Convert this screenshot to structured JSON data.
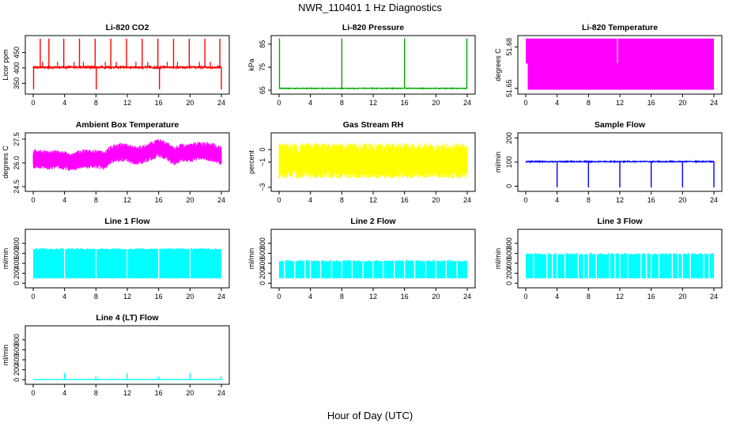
{
  "page": {
    "title": "NWR_110401  1 Hz Diagnostics",
    "xlabel": "Hour of Day (UTC)"
  },
  "chart_data": [
    {
      "type": "line",
      "title": "Li-820 CO2",
      "ylabel": "Licor ppm",
      "color": "#ff0000",
      "xlim": [
        0,
        24
      ],
      "x_ticks": [
        0,
        4,
        8,
        12,
        16,
        20,
        24
      ],
      "ylim": [
        320,
        500
      ],
      "y_ticks": [
        350,
        400,
        450
      ],
      "y_tick_labels": [
        "350",
        "400",
        "450"
      ],
      "baseline": 402,
      "noise": 3,
      "spikes_up_hours": [
        0.9,
        2.0,
        3.9,
        5.9,
        7.9,
        9.9,
        11.9,
        13.9,
        15.9,
        17.9,
        19.9,
        21.9,
        23.8
      ],
      "spike_up_value": 495,
      "spikes_down_hours": [
        0.05,
        8.05,
        16.1,
        24.0
      ],
      "spike_down_value": 330,
      "note": ""
    },
    {
      "type": "line",
      "title": "Li-820 Pressure",
      "ylabel": "kPa",
      "color": "#00aa00",
      "xlim": [
        0,
        24
      ],
      "x_ticks": [
        0,
        4,
        8,
        12,
        16,
        20,
        24
      ],
      "ylim": [
        64,
        88
      ],
      "y_ticks": [
        65,
        75,
        85
      ],
      "y_tick_labels": [
        "65",
        "75",
        "85"
      ],
      "baseline": 65.8,
      "noise": 0.15,
      "spikes_up_hours": [
        0.05,
        8.0,
        16.0,
        23.95
      ],
      "spike_up_value": 87.5,
      "spikes_down_hours": [],
      "spike_down_value": 65
    },
    {
      "type": "area",
      "title": "Li-820 Temperature",
      "ylabel": "degrees C",
      "color": "#ff00ff",
      "xlim": [
        0,
        24
      ],
      "x_ticks": [
        0,
        4,
        8,
        12,
        16,
        20,
        24
      ],
      "ylim": [
        51.647,
        51.687
      ],
      "y_ticks": [
        51.65,
        51.68
      ],
      "y_tick_labels": [
        "51.65",
        "51.68"
      ],
      "band_low": 51.649,
      "band_high": 51.686,
      "band_low_start": 51.668,
      "band_start_hour": 0.25,
      "gap_hour": 11.7
    },
    {
      "type": "line",
      "title": "Ambient Box Temperature",
      "ylabel": "degrees C",
      "color": "#ff00ff",
      "xlim": [
        0,
        24
      ],
      "x_ticks": [
        0,
        4,
        8,
        12,
        16,
        20,
        24
      ],
      "ylim": [
        24.3,
        27.8
      ],
      "y_ticks": [
        24.5,
        26.0,
        27.5
      ],
      "y_tick_labels": [
        "24.5",
        "26.0",
        "27.5"
      ],
      "center_by_hour": [
        26.3,
        26.3,
        26.2,
        26.3,
        26.2,
        26.1,
        26.3,
        26.3,
        26.3,
        26.2,
        26.6,
        26.7,
        26.7,
        26.5,
        26.6,
        26.8,
        27.0,
        26.8,
        26.5,
        26.7,
        26.7,
        26.8,
        26.8,
        26.7,
        26.5
      ],
      "spread": 0.55
    },
    {
      "type": "line",
      "title": "Gas Stream RH",
      "ylabel": "percent",
      "color": "#ffff00",
      "xlim": [
        0,
        24
      ],
      "x_ticks": [
        0,
        4,
        8,
        12,
        16,
        20,
        24
      ],
      "ylim": [
        -3.2,
        1.2
      ],
      "y_ticks": [
        -3,
        -1,
        0
      ],
      "y_tick_labels": [
        "−3",
        "−1",
        "0"
      ],
      "center": -0.95,
      "spread": 1.05
    },
    {
      "type": "line",
      "title": "Sample Flow",
      "ylabel": "ml/min",
      "color": "#0000ff",
      "xlim": [
        0,
        24
      ],
      "x_ticks": [
        0,
        4,
        8,
        12,
        16,
        20,
        24
      ],
      "ylim": [
        -15,
        215
      ],
      "y_ticks": [
        0,
        100,
        200
      ],
      "y_tick_labels": [
        "0",
        "100",
        "200"
      ],
      "baseline": 102,
      "noise": 2,
      "spikes_down_hours": [
        4.0,
        8.0,
        12.0,
        16.0,
        20.0,
        24.0
      ],
      "spike_down_value": -5
    },
    {
      "type": "area",
      "title": "Line 1 Flow",
      "ylabel": "ml/min",
      "color": "#00ffff",
      "xlim": [
        0,
        24
      ],
      "x_ticks": [
        0,
        4,
        8,
        12,
        16,
        20,
        24
      ],
      "ylim": [
        -60,
        1050
      ],
      "y_ticks": [
        0,
        200,
        400,
        600,
        800
      ],
      "y_tick_labels": [
        "0",
        "200",
        "400",
        "600",
        "800"
      ],
      "band_low": 100,
      "band_high": 680,
      "gaps_hours": [
        4.0,
        8.0,
        12.0,
        16.0,
        20.0
      ]
    },
    {
      "type": "area",
      "title": "Line 2 Flow",
      "ylabel": "ml/min",
      "color": "#00ffff",
      "xlim": [
        0,
        24
      ],
      "x_ticks": [
        0,
        4,
        8,
        12,
        16,
        20,
        24
      ],
      "ylim": [
        -60,
        1050
      ],
      "y_ticks": [
        0,
        200,
        400,
        600,
        800
      ],
      "y_tick_labels": [
        "0",
        "200",
        "400",
        "600",
        "800"
      ],
      "band_low": 100,
      "band_high": 440,
      "gaps_hours": [
        0.7,
        2.0,
        3.3,
        4.0,
        5.3,
        6.7,
        8.0,
        9.3,
        10.7,
        12.0,
        13.3,
        14.7,
        16.0,
        17.3,
        18.7,
        20.0,
        21.3,
        22.7
      ]
    },
    {
      "type": "area",
      "title": "Line 3 Flow",
      "ylabel": "ml/min",
      "color": "#00ffff",
      "xlim": [
        0,
        24
      ],
      "x_ticks": [
        0,
        4,
        8,
        12,
        16,
        20,
        24
      ],
      "ylim": [
        -60,
        1050
      ],
      "y_ticks": [
        0,
        200,
        400,
        600,
        800
      ],
      "y_tick_labels": [
        "0",
        "200",
        "400",
        "600",
        "800"
      ],
      "band_low": 100,
      "band_high": 580,
      "gaps_hours": [
        1.0,
        2.7,
        3.4,
        4.0,
        5.0,
        6.7,
        7.4,
        8.0,
        9.0,
        10.7,
        11.4,
        12.0,
        13.0,
        14.7,
        15.4,
        16.0,
        17.0,
        18.7,
        19.4,
        20.0,
        21.0,
        22.7,
        23.4
      ]
    },
    {
      "type": "line",
      "title": "Line 4 (LT) Flow",
      "ylabel": "ml/min",
      "color": "#00ffff",
      "xlim": [
        0,
        24
      ],
      "x_ticks": [
        0,
        4,
        8,
        12,
        16,
        20,
        24
      ],
      "ylim": [
        -60,
        1050
      ],
      "y_ticks": [
        0,
        200,
        400,
        600,
        800
      ],
      "y_tick_labels": [
        "0",
        "200",
        "400",
        "600",
        "800"
      ],
      "baseline": 5,
      "noise": 3,
      "spikes_up_hours": [
        4.0,
        8.0,
        12.0,
        16.0,
        20.0,
        24.0
      ],
      "spike_up_values": [
        140,
        70,
        130,
        60,
        140,
        70
      ]
    }
  ]
}
